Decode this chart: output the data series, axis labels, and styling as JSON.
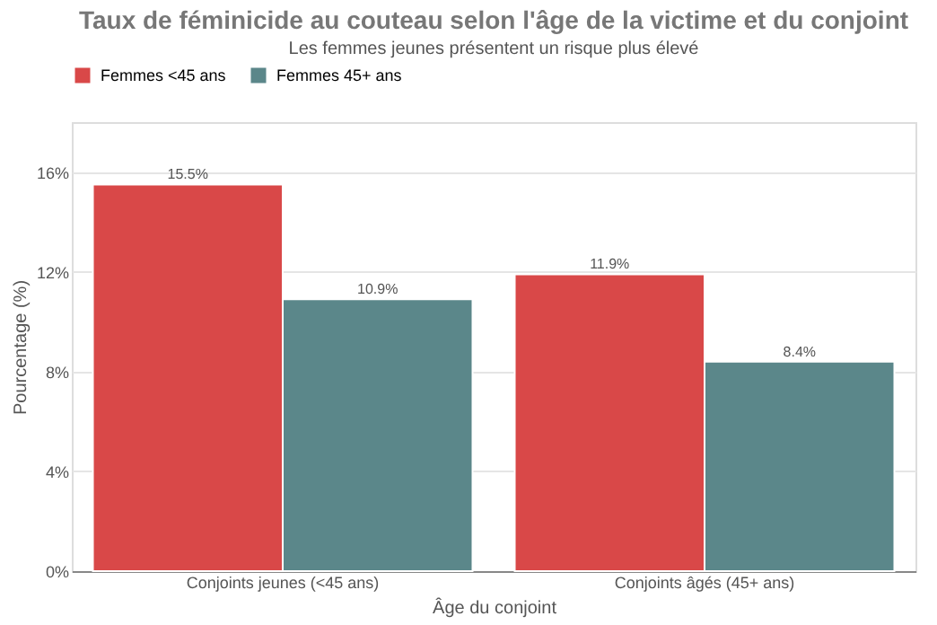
{
  "chart_data": {
    "type": "bar",
    "title": "Taux de féminicide au couteau selon l'âge de la victime et du conjoint",
    "subtitle": "Les femmes jeunes présentent un risque plus élevé",
    "xlabel": "Âge du conjoint",
    "ylabel": "Pourcentage (%)",
    "categories": [
      "Conjoints jeunes (<45 ans)",
      "Conjoints âgés (45+ ans)"
    ],
    "series": [
      {
        "name": "Femmes <45 ans",
        "color": "#d94848",
        "values": [
          15.5,
          11.9
        ],
        "value_labels": [
          "15.5%",
          "11.9%"
        ]
      },
      {
        "name": "Femmes 45+ ans",
        "color": "#5b878a",
        "values": [
          10.9,
          8.4
        ],
        "value_labels": [
          "10.9%",
          "8.4%"
        ]
      }
    ],
    "ylim": [
      0,
      18
    ],
    "yticks": [
      {
        "value": 0,
        "label": "0%"
      },
      {
        "value": 4,
        "label": "4%"
      },
      {
        "value": 8,
        "label": "8%"
      },
      {
        "value": 12,
        "label": "12%"
      },
      {
        "value": 16,
        "label": "16%"
      }
    ],
    "grid": "y",
    "legend": "top"
  }
}
